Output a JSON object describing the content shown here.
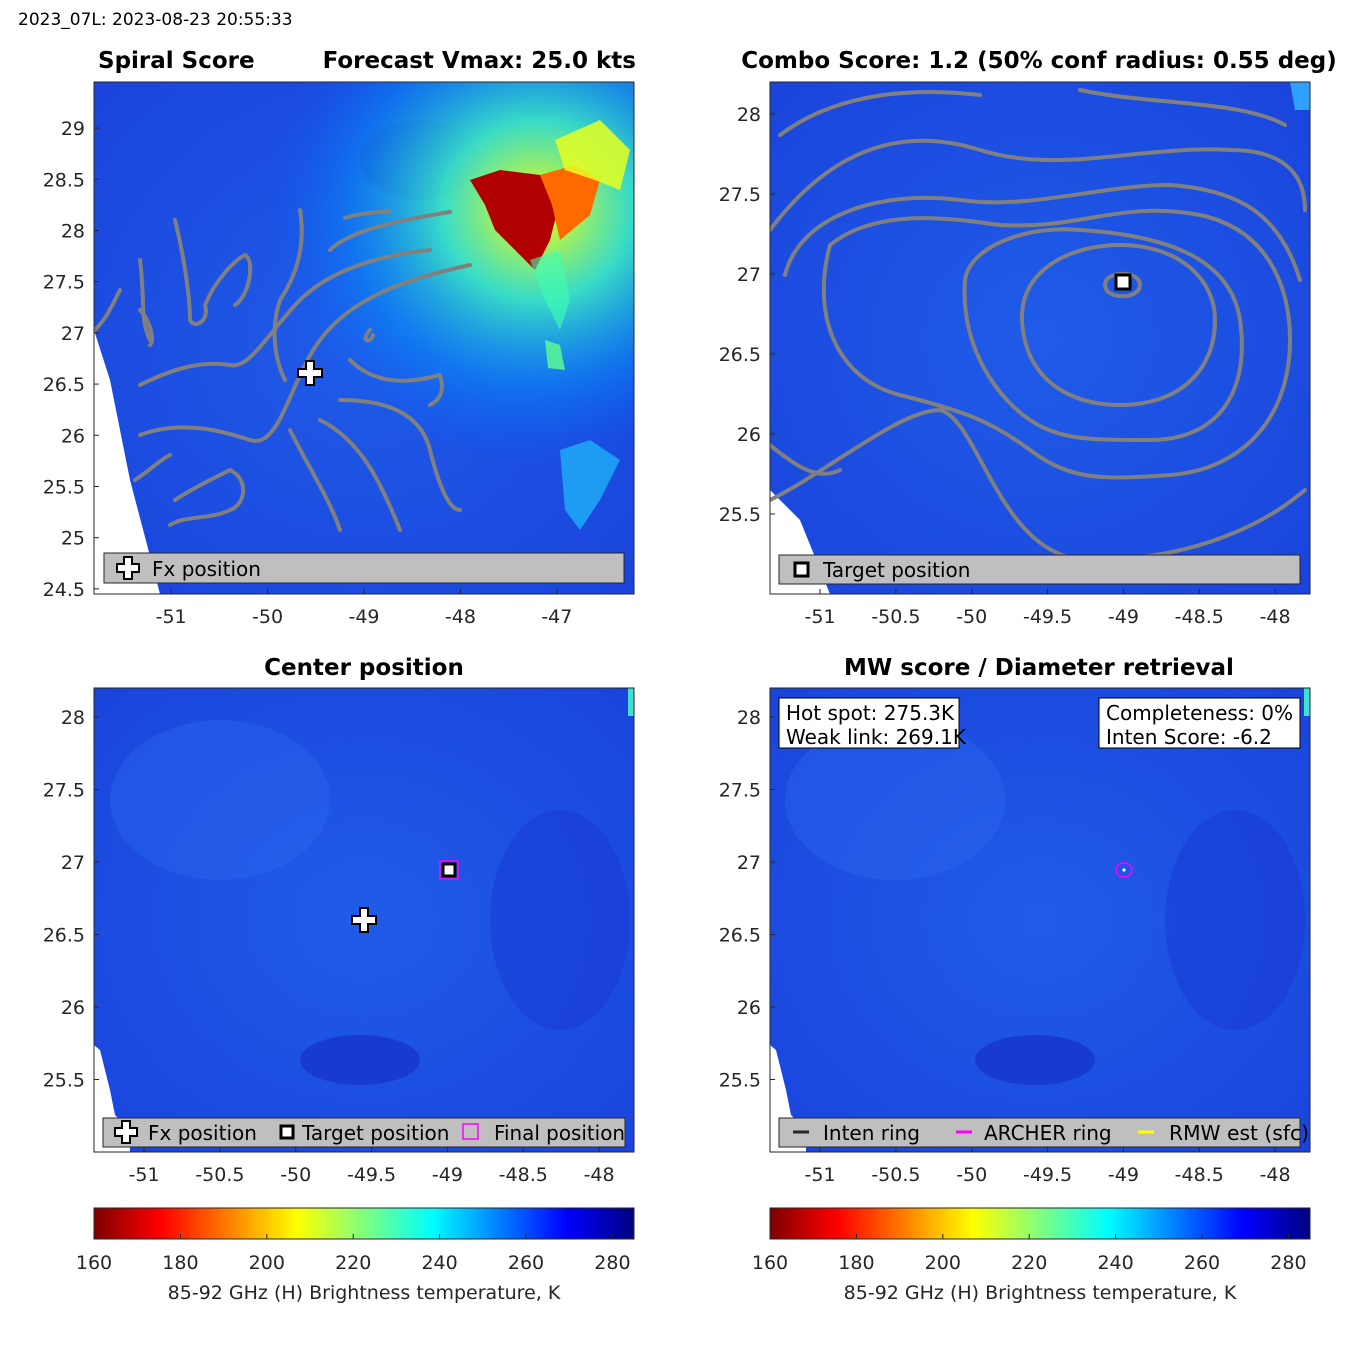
{
  "header": {
    "stamp": "2023_07L: 2023-08-23 20:55:33"
  },
  "colors": {
    "background_tb": "#1d4fe6",
    "contour": "#808080",
    "archer_ring": "#ff00ff",
    "rmw": "#ffff00",
    "legend_bg": "#bfbfbf"
  },
  "chart_data": [
    {
      "id": "spiral",
      "type": "heatmap",
      "title_left": "Spiral Score",
      "title_right": "Forecast Vmax: 25.0 kts",
      "xlim": [
        -51.8,
        -46.2
      ],
      "ylim": [
        24.45,
        29.45
      ],
      "xticks": [
        -51,
        -50,
        -49,
        -48,
        -47
      ],
      "yticks": [
        24.5,
        25,
        25.5,
        26,
        26.5,
        27,
        27.5,
        28,
        28.5,
        29
      ],
      "xtick_labels": [
        "-51",
        "-50",
        "-49",
        "-48",
        "-47"
      ],
      "ytick_labels": [
        "24.5",
        "25",
        "25.5",
        "26",
        "26.5",
        "27",
        "27.5",
        "28",
        "28.5",
        "29"
      ],
      "markers": [
        {
          "kind": "fx_cross",
          "lon": -49.55,
          "lat": 26.6
        }
      ],
      "legend": [
        {
          "symbol": "cross",
          "label": "Fx position"
        }
      ]
    },
    {
      "id": "combo",
      "type": "heatmap",
      "title": "Combo Score: 1.2  (50% conf radius: 0.55 deg)",
      "xlim": [
        -51.33,
        -47.77
      ],
      "ylim": [
        25.0,
        28.2
      ],
      "xticks": [
        -51,
        -50.5,
        -50,
        -49.5,
        -49,
        -48.5,
        -48
      ],
      "yticks": [
        25.5,
        26,
        26.5,
        27,
        27.5,
        28
      ],
      "xtick_labels": [
        "-51",
        "-50.5",
        "-50",
        "-49.5",
        "-49",
        "-48.5",
        "-48"
      ],
      "ytick_labels": [
        "25.5",
        "26",
        "26.5",
        "27",
        "27.5",
        "28"
      ],
      "markers": [
        {
          "kind": "target_square",
          "lon": -49.0,
          "lat": 26.95
        }
      ],
      "legend": [
        {
          "symbol": "square",
          "label": "Target position"
        }
      ]
    },
    {
      "id": "center",
      "type": "heatmap",
      "title": "Center position",
      "xlim": [
        -51.33,
        -47.77
      ],
      "ylim": [
        25.0,
        28.2
      ],
      "xticks": [
        -51,
        -50.5,
        -50,
        -49.5,
        -49,
        -48.5,
        -48
      ],
      "yticks": [
        25.5,
        26,
        26.5,
        27,
        27.5,
        28
      ],
      "xtick_labels": [
        "-51",
        "-50.5",
        "-50",
        "-49.5",
        "-49",
        "-48.5",
        "-48"
      ],
      "ytick_labels": [
        "25.5",
        "26",
        "26.5",
        "27",
        "27.5",
        "28"
      ],
      "markers": [
        {
          "kind": "fx_cross",
          "lon": -49.55,
          "lat": 26.6
        },
        {
          "kind": "target_square",
          "lon": -49.0,
          "lat": 26.95
        },
        {
          "kind": "final_square",
          "lon": -49.0,
          "lat": 26.95
        }
      ],
      "legend": [
        {
          "symbol": "cross",
          "label": "Fx position"
        },
        {
          "symbol": "square",
          "label": "Target position"
        },
        {
          "symbol": "magenta_square",
          "label": "Final position"
        }
      ]
    },
    {
      "id": "mw",
      "type": "heatmap",
      "title": "MW score / Diameter retrieval",
      "xlim": [
        -51.33,
        -47.77
      ],
      "ylim": [
        25.0,
        28.2
      ],
      "xticks": [
        -51,
        -50.5,
        -50,
        -49.5,
        -49,
        -48.5,
        -48
      ],
      "yticks": [
        25.5,
        26,
        26.5,
        27,
        27.5,
        28
      ],
      "xtick_labels": [
        "-51",
        "-50.5",
        "-50",
        "-49.5",
        "-49",
        "-48.5",
        "-48"
      ],
      "ytick_labels": [
        "25.5",
        "26",
        "26.5",
        "27",
        "27.5",
        "28"
      ],
      "markers": [
        {
          "kind": "archer_ring",
          "lon": -49.0,
          "lat": 26.95
        }
      ],
      "info_left": [
        "Hot spot: 275.3K",
        "Weak link: 269.1K"
      ],
      "info_right": [
        "Completeness: 0%",
        "Inten Score: -6.2"
      ],
      "legend": [
        {
          "symbol": "dark_line",
          "label": "Inten ring"
        },
        {
          "symbol": "magenta_line",
          "label": "ARCHER ring"
        },
        {
          "symbol": "yellow_line",
          "label": "RMW est (sfc)"
        }
      ]
    }
  ],
  "colorbar": {
    "range": [
      160,
      285
    ],
    "ticks": [
      160,
      180,
      200,
      220,
      240,
      260,
      280
    ],
    "tick_labels": [
      "160",
      "180",
      "200",
      "220",
      "240",
      "260",
      "280"
    ],
    "label": "85-92 GHz (H) Brightness temperature, K"
  }
}
